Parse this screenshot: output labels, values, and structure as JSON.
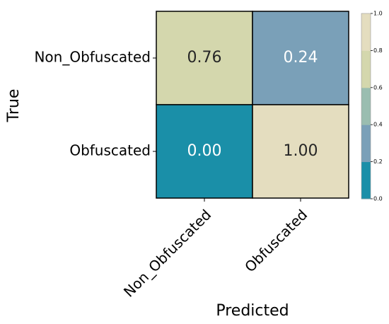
{
  "chart_data": {
    "type": "heatmap",
    "title": "",
    "xlabel": "Predicted",
    "ylabel": "True",
    "x_categories": [
      "Non_Obfuscated",
      "Obfuscated"
    ],
    "y_categories": [
      "Non_Obfuscated",
      "Obfuscated"
    ],
    "values": [
      [
        0.76,
        0.24
      ],
      [
        0.0,
        1.0
      ]
    ],
    "value_labels": [
      [
        "0.76",
        "0.24"
      ],
      [
        "0.00",
        "1.00"
      ]
    ],
    "colorbar": {
      "range": [
        0,
        1
      ],
      "ticks": [
        "0.0",
        "0.2",
        "0.4",
        "0.6",
        "0.8",
        "1.0"
      ],
      "bins": [
        "#1a8fa8",
        "#7aa0b8",
        "#9abdb0",
        "#d4d7ad",
        "#e4ddbf"
      ]
    },
    "text_colors": {
      "dark_cell": "#ffffff",
      "light_cell": "#262626"
    }
  }
}
